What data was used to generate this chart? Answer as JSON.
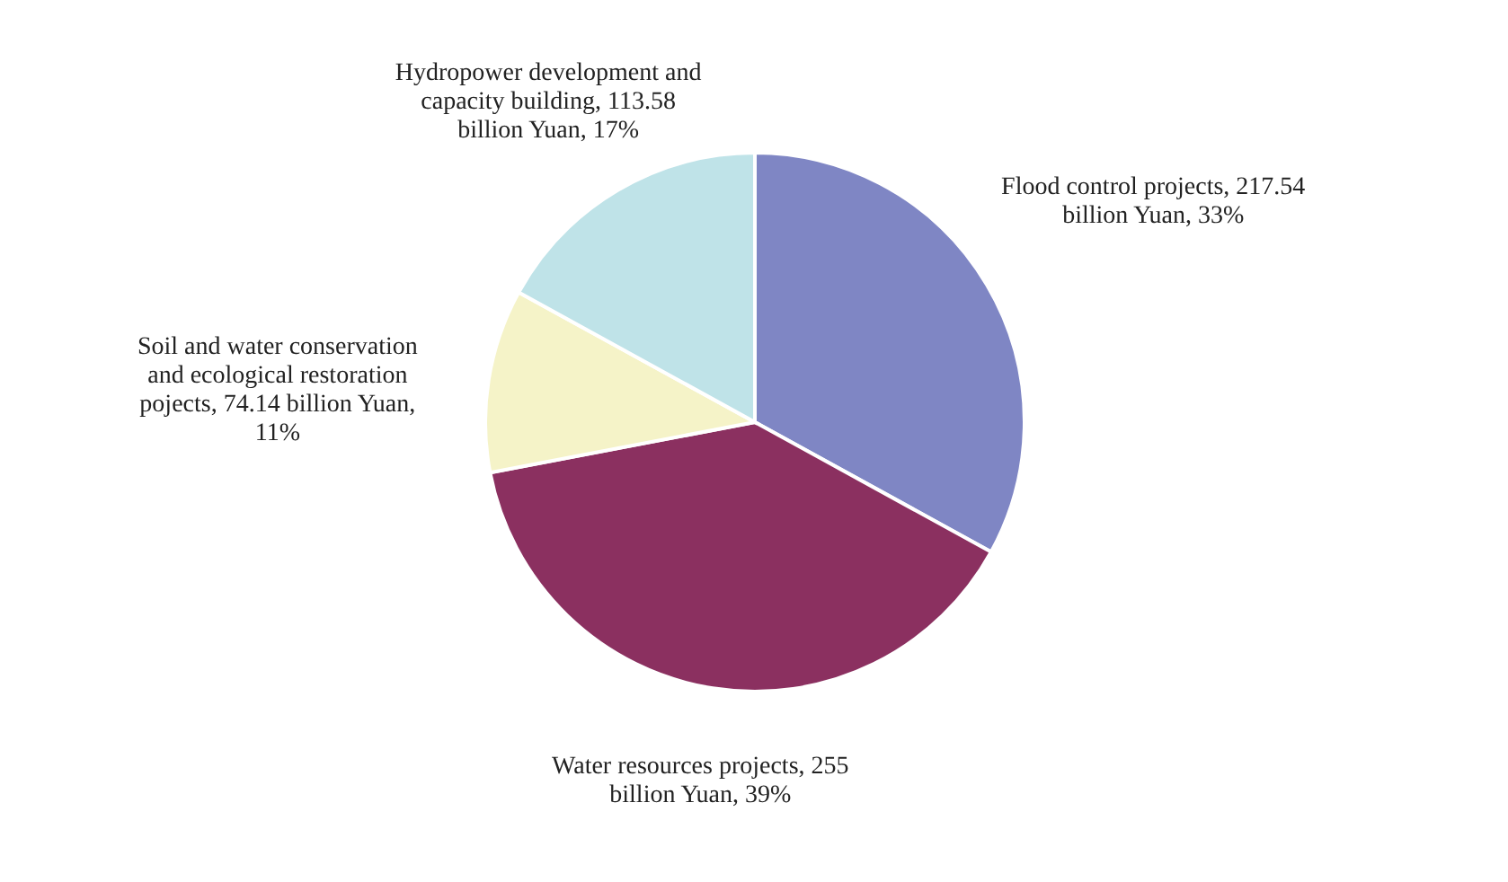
{
  "chart_data": {
    "type": "pie",
    "categories": [
      "Flood control projects",
      "Water resources projects",
      "Soil and water conservation and ecological restoration pojects",
      "Hydropower development and capacity building"
    ],
    "values": [
      33,
      39,
      11,
      17
    ],
    "value_labels": [
      "217.54 billion Yuan, 33%",
      "255 billion Yuan, 39%",
      "74.14 billion Yuan, 11%",
      "113.58 billion Yuan, 17%"
    ],
    "colors": [
      "#7f86c4",
      "#8b3060",
      "#f5f3c8",
      "#bfe3e8"
    ]
  }
}
